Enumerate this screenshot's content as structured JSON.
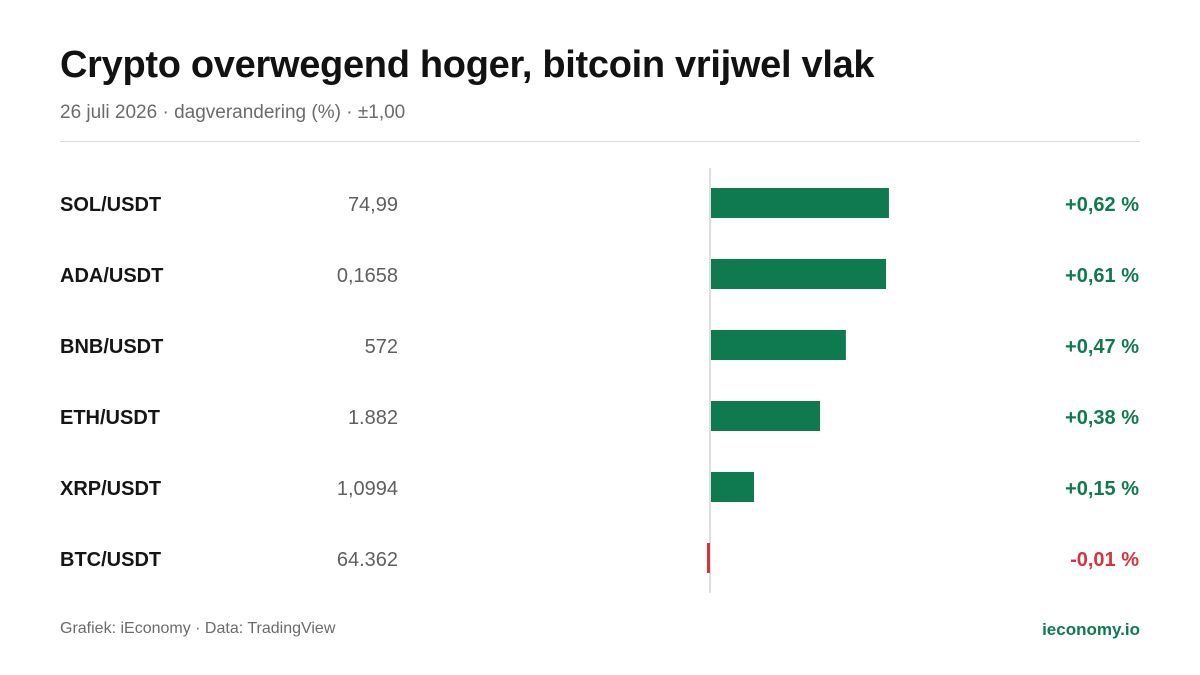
{
  "header": {
    "title": "Crypto overwegend hoger, bitcoin vrijwel vlak",
    "subtitle": "26 juli 2026 · dagverandering (%) · ±1,00"
  },
  "footer": {
    "source": "Grafiek: iEconomy · Data: TradingView",
    "brand": "ieconomy.io"
  },
  "colors": {
    "positive": "#0f7a4f",
    "negative": "#d4343b",
    "label": "#151515",
    "price": "#5f5f5f",
    "axis": "#d4d4d4"
  },
  "chart_data": {
    "type": "bar",
    "orientation": "horizontal",
    "title": "Crypto overwegend hoger, bitcoin vrijwel vlak",
    "subtitle": "26 juli 2026 · dagverandering (%) · ±1,00",
    "xlim": [
      -1.0,
      1.0
    ],
    "categories": [
      "SOL/USDT",
      "ADA/USDT",
      "BNB/USDT",
      "ETH/USDT",
      "XRP/USDT",
      "BTC/USDT"
    ],
    "prices": [
      "74,99",
      "0,1658",
      "572",
      "1.882",
      "1,0994",
      "64.362"
    ],
    "values": [
      0.62,
      0.61,
      0.47,
      0.38,
      0.15,
      -0.01
    ],
    "value_labels": [
      "+0,62 %",
      "+0,61 %",
      "+0,47 %",
      "+0,38 %",
      "+0,15 %",
      "-0,01 %"
    ]
  }
}
